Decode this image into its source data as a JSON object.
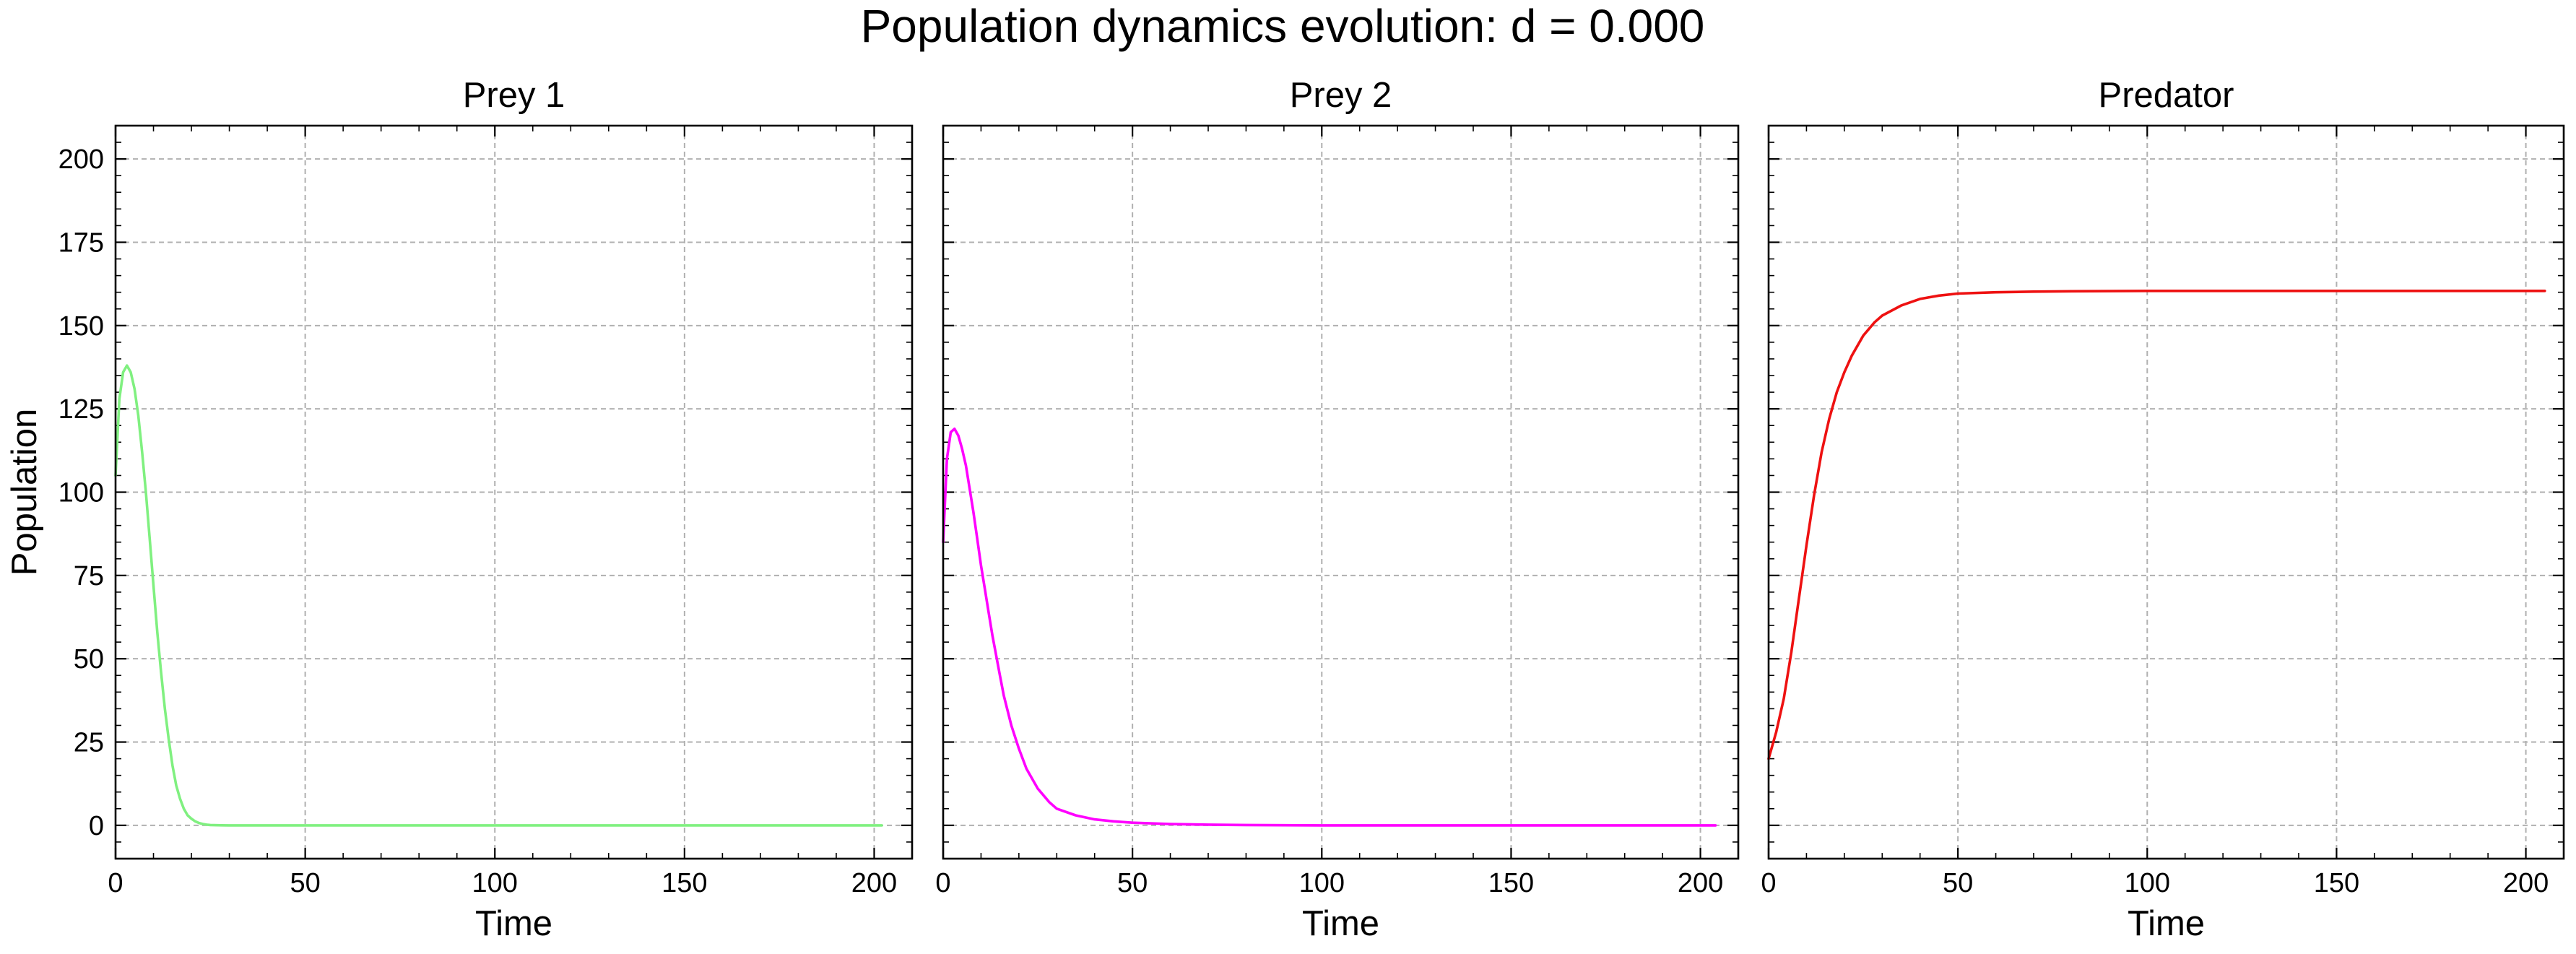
{
  "figure": {
    "suptitle": "Population dynamics evolution: d = 0.000"
  },
  "chart_data": [
    {
      "type": "line",
      "title": "Prey 1",
      "xlabel": "Time",
      "ylabel": "Population",
      "xlim": [
        0,
        210
      ],
      "ylim": [
        -10,
        210
      ],
      "xticks": [
        "0",
        "50",
        "100",
        "150",
        "200"
      ],
      "yticks": [
        "0",
        "25",
        "50",
        "75",
        "100",
        "125",
        "150",
        "175",
        "200"
      ],
      "grid": true,
      "color": "#80f080",
      "series": [
        {
          "x": [
            0,
            1,
            2,
            3,
            4,
            5,
            6,
            7,
            8,
            9,
            10,
            11,
            12,
            13,
            14,
            15,
            16,
            17,
            18,
            19,
            20,
            21,
            22,
            23,
            24,
            25,
            26,
            28,
            30,
            35,
            40,
            50,
            75,
            100,
            125,
            150,
            175,
            202
          ],
          "y": [
            105,
            128,
            136,
            138,
            136,
            131,
            123,
            112,
            100,
            86,
            72,
            58,
            46,
            35,
            26,
            18,
            12,
            8,
            5,
            3,
            2,
            1.2,
            0.7,
            0.4,
            0.2,
            0.1,
            0.05,
            0.02,
            0,
            0,
            0,
            0,
            0,
            0,
            0,
            0,
            0,
            0
          ]
        }
      ]
    },
    {
      "type": "line",
      "title": "Prey 2",
      "xlabel": "Time",
      "ylabel": "",
      "xlim": [
        0,
        210
      ],
      "ylim": [
        -10,
        210
      ],
      "xticks": [
        "0",
        "50",
        "100",
        "150",
        "200"
      ],
      "grid": true,
      "color": "#ff00ff",
      "series": [
        {
          "x": [
            0,
            1,
            2,
            3,
            4,
            5,
            6,
            7,
            8,
            9,
            10,
            11,
            12,
            13,
            14,
            15,
            16,
            18,
            20,
            22,
            25,
            28,
            30,
            35,
            40,
            45,
            50,
            60,
            70,
            80,
            100,
            125,
            150,
            175,
            204
          ],
          "y": [
            85,
            110,
            118,
            119,
            117,
            113,
            108,
            101,
            94,
            86,
            78,
            71,
            64,
            57,
            51,
            45,
            39,
            30,
            23,
            17,
            11,
            7,
            5,
            3,
            1.8,
            1.2,
            0.8,
            0.4,
            0.2,
            0.1,
            0,
            0,
            0,
            0,
            0
          ]
        }
      ]
    },
    {
      "type": "line",
      "title": "Predator",
      "xlabel": "Time",
      "ylabel": "",
      "xlim": [
        0,
        210
      ],
      "ylim": [
        -10,
        210
      ],
      "xticks": [
        "0",
        "50",
        "100",
        "150",
        "200"
      ],
      "grid": true,
      "color": "#ee1111",
      "series": [
        {
          "x": [
            0,
            2,
            4,
            6,
            8,
            10,
            12,
            14,
            16,
            18,
            20,
            22,
            25,
            28,
            30,
            35,
            40,
            45,
            50,
            60,
            70,
            80,
            100,
            125,
            150,
            175,
            205
          ],
          "y": [
            20,
            28,
            38,
            52,
            68,
            84,
            99,
            112,
            122,
            130,
            136,
            141,
            147,
            151,
            153,
            156,
            158,
            159,
            159.6,
            160,
            160.2,
            160.3,
            160.4,
            160.4,
            160.4,
            160.4,
            160.4
          ]
        }
      ]
    }
  ]
}
